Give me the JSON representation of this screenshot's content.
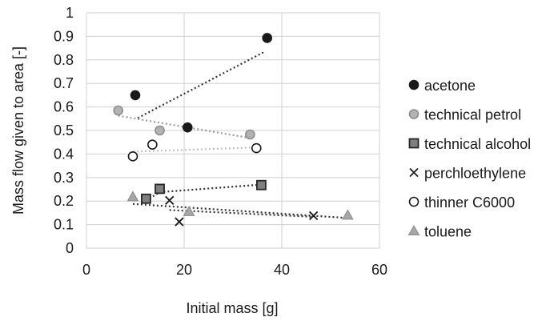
{
  "chart_data": {
    "type": "scatter",
    "xlabel": "Initial mass [g]",
    "ylabel": "Mass flow given to area [-]",
    "xlim": [
      0,
      60
    ],
    "ylim": [
      0,
      1
    ],
    "x_ticks": [
      "0",
      "20",
      "40",
      "60"
    ],
    "y_ticks": [
      "0",
      "0.1",
      "0.2",
      "0.3",
      "0.4",
      "0.5",
      "0.6",
      "0.7",
      "0.8",
      "0.9",
      "1"
    ],
    "grid": true,
    "legend_position": "right",
    "series": [
      {
        "name": "acetone",
        "marker": "circle",
        "fill": "#1a1a1a",
        "stroke": "#1a1a1a",
        "trend_color": "#333333",
        "points": [
          [
            10,
            0.65
          ],
          [
            20.7,
            0.513
          ],
          [
            37,
            0.893
          ]
        ],
        "trendline": [
          [
            10.5,
            0.553
          ],
          [
            36.5,
            0.835
          ]
        ]
      },
      {
        "name": "technical petrol",
        "marker": "circle",
        "fill": "#b3b3b3",
        "stroke": "#8c8c8c",
        "trend_color": "#999999",
        "points": [
          [
            6.5,
            0.585
          ],
          [
            15,
            0.5
          ],
          [
            33.5,
            0.483
          ]
        ],
        "trendline": [
          [
            6.5,
            0.563
          ],
          [
            33.5,
            0.468
          ]
        ]
      },
      {
        "name": "technical alcohol",
        "marker": "square",
        "fill": "#7f7f7f",
        "stroke": "#262626",
        "trend_color": "#333333",
        "points": [
          [
            12.2,
            0.21
          ],
          [
            15,
            0.252
          ],
          [
            35.8,
            0.268
          ]
        ],
        "trendline": [
          [
            12.2,
            0.202
          ],
          [
            15,
            0.238
          ],
          [
            35.8,
            0.27
          ]
        ]
      },
      {
        "name": "perchloethylene",
        "marker": "x",
        "fill": "#1a1a1a",
        "stroke": "#1a1a1a",
        "trend_color": "#333333",
        "points": [
          [
            17,
            0.203
          ],
          [
            19,
            0.112
          ],
          [
            46.5,
            0.138
          ]
        ],
        "trendline": [
          [
            17,
            0.162
          ],
          [
            46.5,
            0.133
          ]
        ]
      },
      {
        "name": "thinner C6000",
        "marker": "circle",
        "fill": "#ffffff",
        "stroke": "#1a1a1a",
        "trend_color": "#bfbfbf",
        "points": [
          [
            9.5,
            0.39
          ],
          [
            13.5,
            0.44
          ],
          [
            34.8,
            0.425
          ]
        ],
        "trendline": [
          [
            9.5,
            0.41
          ],
          [
            34.8,
            0.428
          ]
        ]
      },
      {
        "name": "toluene",
        "marker": "triangle",
        "fill": "#a6a6a6",
        "stroke": "#8c8c8c",
        "trend_color": "#333333",
        "points": [
          [
            9.5,
            0.218
          ],
          [
            21,
            0.155
          ],
          [
            53.5,
            0.14
          ]
        ],
        "trendline": [
          [
            9.5,
            0.188
          ],
          [
            53.5,
            0.128
          ]
        ]
      }
    ]
  }
}
